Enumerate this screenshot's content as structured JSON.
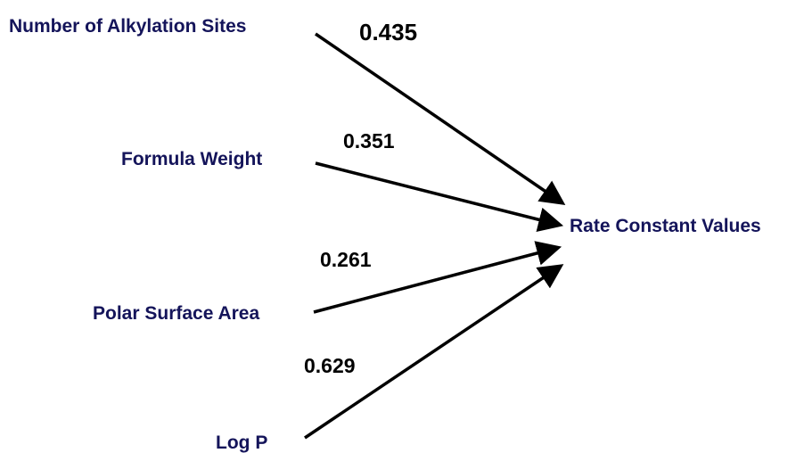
{
  "colors": {
    "label_text": "#14145a",
    "weight_text": "#000000",
    "arrow": "#000000",
    "background": "#ffffff"
  },
  "target": {
    "label": "Rate Constant Values"
  },
  "sources": [
    {
      "id": "alkylation-sites",
      "label": "Number of Alkylation Sites",
      "weight": "0.435"
    },
    {
      "id": "formula-weight",
      "label": "Formula Weight",
      "weight": "0.351"
    },
    {
      "id": "polar-surface-area",
      "label": "Polar Surface Area",
      "weight": "0.261"
    },
    {
      "id": "log-p",
      "label": "Log P",
      "weight": "0.629"
    }
  ]
}
